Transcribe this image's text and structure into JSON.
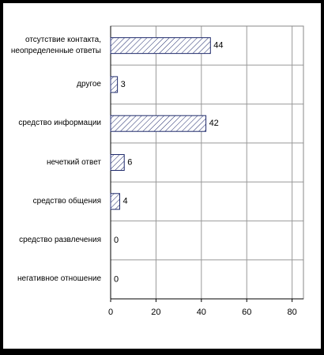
{
  "chart_data": {
    "type": "barh",
    "categories": [
      "отсутствие контакта,\nнеопределенные ответы",
      "другое",
      "средство информации",
      "нечеткий ответ",
      "средство общения",
      "средство развлечения",
      "негативное отношение"
    ],
    "values": [
      44,
      3,
      42,
      6,
      4,
      0,
      0
    ],
    "color": "#1f2a6b",
    "xlim": [
      0,
      85
    ],
    "xticks": [
      0,
      20,
      40,
      60,
      80
    ],
    "grid": true
  }
}
